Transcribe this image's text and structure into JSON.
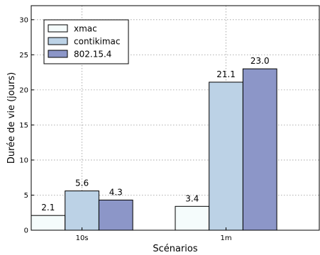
{
  "chart_data": {
    "type": "bar",
    "xlabel": "Scénarios",
    "ylabel": "Durée de vie (jours)",
    "categories": [
      "10s",
      "1m"
    ],
    "series": [
      {
        "name": "xmac",
        "values": [
          2.1,
          3.4
        ],
        "labels": [
          "2.1",
          "3.4"
        ],
        "color": "#f5fcfc"
      },
      {
        "name": "contikimac",
        "values": [
          5.6,
          21.1
        ],
        "labels": [
          "5.6",
          "21.1"
        ],
        "color": "#bcd2e6"
      },
      {
        "name": "802.15.4",
        "values": [
          4.3,
          23.0
        ],
        "labels": [
          "4.3",
          "23.0"
        ],
        "color": "#8c96c8"
      }
    ],
    "ylim": [
      0,
      32
    ],
    "yticks": [
      0,
      5,
      10,
      15,
      20,
      25,
      30
    ],
    "grid": true,
    "legend_position": "top-left"
  }
}
